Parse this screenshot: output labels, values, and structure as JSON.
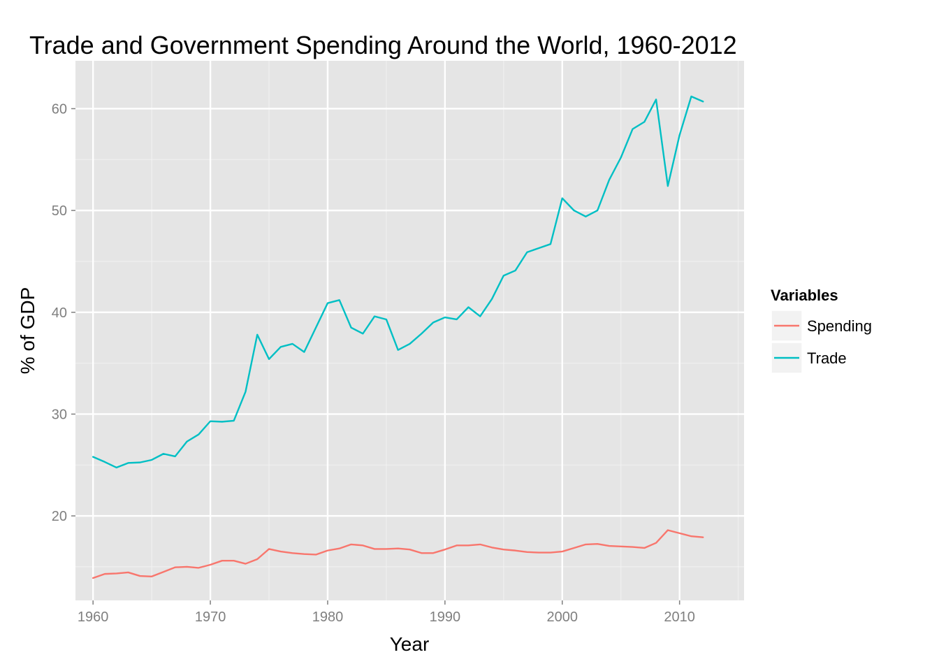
{
  "chart_data": {
    "type": "line",
    "title": "Trade and Government Spending Around the World, 1960-2012",
    "xlabel": "Year",
    "ylabel": "% of GDP",
    "xlim": [
      1958.5,
      2015.5
    ],
    "ylim": [
      11.7,
      64.7
    ],
    "x_ticks": [
      1960,
      1970,
      1980,
      1990,
      2000,
      2010
    ],
    "y_ticks": [
      20,
      30,
      40,
      50,
      60
    ],
    "grid": true,
    "legend": {
      "title": "Variables",
      "position": "right"
    },
    "x": [
      1960,
      1961,
      1962,
      1963,
      1964,
      1965,
      1966,
      1967,
      1968,
      1969,
      1970,
      1971,
      1972,
      1973,
      1974,
      1975,
      1976,
      1977,
      1978,
      1979,
      1980,
      1981,
      1982,
      1983,
      1984,
      1985,
      1986,
      1987,
      1988,
      1989,
      1990,
      1991,
      1992,
      1993,
      1994,
      1995,
      1996,
      1997,
      1998,
      1999,
      2000,
      2001,
      2002,
      2003,
      2004,
      2005,
      2006,
      2007,
      2008,
      2009,
      2010,
      2011,
      2012
    ],
    "series": [
      {
        "name": "Spending",
        "color": "#F8766D",
        "values": [
          13.9,
          14.3,
          14.35,
          14.45,
          14.1,
          14.05,
          14.5,
          14.95,
          15.0,
          14.9,
          15.2,
          15.6,
          15.6,
          15.3,
          15.75,
          16.75,
          16.5,
          16.35,
          16.25,
          16.2,
          16.6,
          16.8,
          17.2,
          17.1,
          16.75,
          16.75,
          16.8,
          16.7,
          16.35,
          16.35,
          16.7,
          17.1,
          17.1,
          17.2,
          16.9,
          16.7,
          16.6,
          16.45,
          16.4,
          16.4,
          16.5,
          16.85,
          17.2,
          17.25,
          17.05,
          17.0,
          16.95,
          16.85,
          17.35,
          18.6,
          18.3,
          18.0,
          17.9
        ]
      },
      {
        "name": "Trade",
        "color": "#00BFC4",
        "values": [
          25.8,
          25.3,
          24.75,
          25.2,
          25.25,
          25.5,
          26.1,
          25.85,
          27.3,
          28.0,
          29.3,
          29.25,
          29.35,
          32.2,
          37.8,
          35.4,
          36.6,
          36.9,
          36.1,
          38.5,
          40.9,
          41.2,
          38.5,
          37.9,
          39.6,
          39.3,
          36.3,
          36.9,
          37.9,
          39.0,
          39.5,
          39.3,
          40.5,
          39.6,
          41.3,
          43.6,
          44.1,
          45.9,
          46.3,
          46.7,
          51.2,
          50.0,
          49.4,
          50.0,
          53.0,
          55.2,
          58.0,
          58.7,
          60.9,
          52.4,
          57.4,
          61.2,
          60.7
        ]
      }
    ]
  }
}
